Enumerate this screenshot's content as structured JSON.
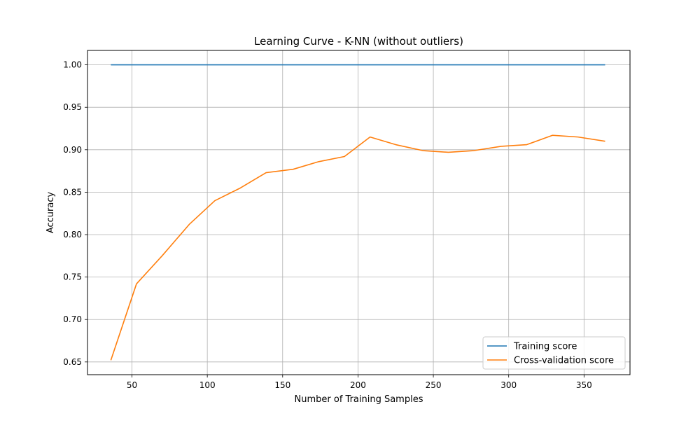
{
  "chart_data": {
    "type": "line",
    "title": "Learning Curve - K-NN (without outliers)",
    "xlabel": "Number of Training Samples",
    "ylabel": "Accuracy",
    "xlim": [
      20.5,
      380.5
    ],
    "ylim": [
      0.635,
      1.017
    ],
    "xticks": [
      50,
      100,
      150,
      200,
      250,
      300,
      350
    ],
    "yticks": [
      0.65,
      0.7,
      0.75,
      0.8,
      0.85,
      0.9,
      0.95,
      1.0
    ],
    "grid": true,
    "legend_position": "lower-right",
    "series": [
      {
        "name": "Training score",
        "color": "#1f77b4",
        "x": [
          36,
          53,
          70,
          88,
          105,
          122,
          139,
          157,
          174,
          191,
          208,
          225,
          243,
          260,
          277,
          295,
          312,
          329,
          346,
          364
        ],
        "y": [
          1.0,
          1.0,
          1.0,
          1.0,
          1.0,
          1.0,
          1.0,
          1.0,
          1.0,
          1.0,
          1.0,
          1.0,
          1.0,
          1.0,
          1.0,
          1.0,
          1.0,
          1.0,
          1.0,
          1.0
        ]
      },
      {
        "name": "Cross-validation score",
        "color": "#ff7f0e",
        "x": [
          36,
          53,
          70,
          88,
          105,
          122,
          139,
          157,
          174,
          191,
          208,
          225,
          243,
          260,
          277,
          295,
          312,
          329,
          346,
          364
        ],
        "y": [
          0.652,
          0.742,
          0.775,
          0.812,
          0.84,
          0.855,
          0.873,
          0.877,
          0.886,
          0.892,
          0.915,
          0.906,
          0.899,
          0.897,
          0.899,
          0.904,
          0.906,
          0.917,
          0.915,
          0.91
        ]
      }
    ]
  }
}
